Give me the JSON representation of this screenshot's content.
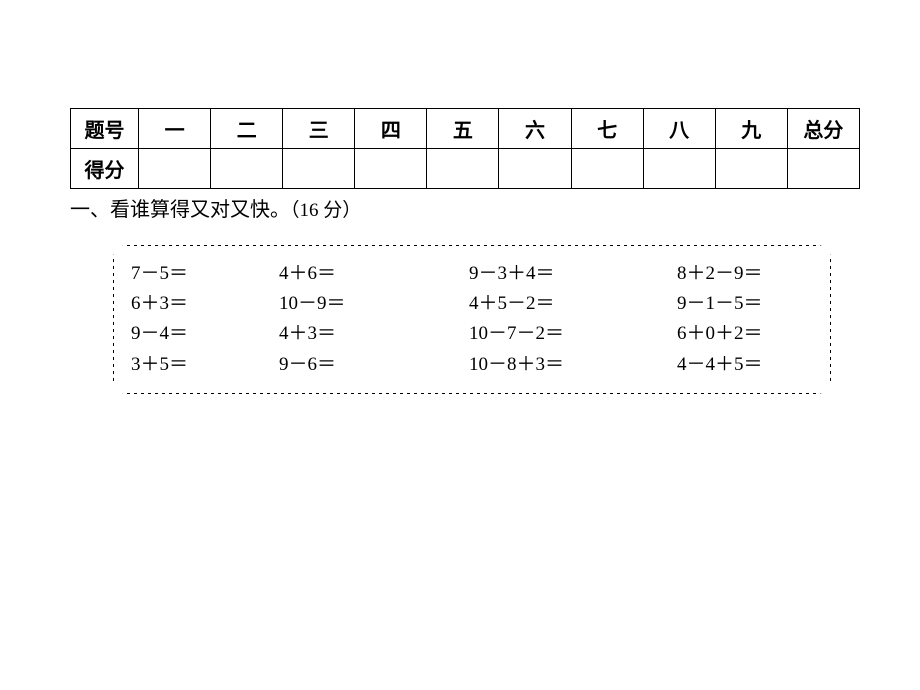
{
  "scoreTable": {
    "header_label": "题号",
    "score_label": "得分",
    "columns": [
      "一",
      "二",
      "三",
      "四",
      "五",
      "六",
      "七",
      "八",
      "九",
      "总分"
    ]
  },
  "section1": {
    "number": "一、",
    "title": "看谁算得又对又快。",
    "points": "（16 分）"
  },
  "problems": {
    "rows": [
      [
        "7－5＝",
        "4＋6＝",
        "9－3＋4＝",
        "8＋2－9＝"
      ],
      [
        "6＋3＝",
        "10－9＝",
        "4＋5－2＝",
        "9－1－5＝"
      ],
      [
        "9－4＝",
        "4＋3＝",
        "10－7－2＝",
        "6＋0＋2＝"
      ],
      [
        "3＋5＝",
        "9－6＝",
        "10－8＋3＝",
        "4－4＋5＝"
      ]
    ]
  },
  "style": {
    "background_color": "#ffffff",
    "text_color": "#000000",
    "border_color": "#000000",
    "font_family": "SimSun",
    "table_font_size_pt": 15,
    "body_font_size_pt": 14,
    "box_border_style": "dashed-cross"
  }
}
